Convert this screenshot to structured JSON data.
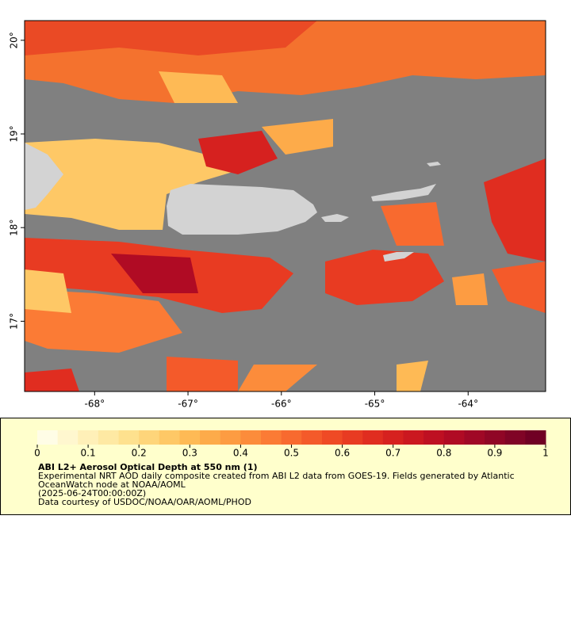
{
  "map": {
    "xlim": [
      -68.75,
      -63.17
    ],
    "ylim": [
      16.25,
      20.21
    ],
    "xticks": [
      {
        "value": -68,
        "label": "-68°"
      },
      {
        "value": -67,
        "label": "-67°"
      },
      {
        "value": -66,
        "label": "-66°"
      },
      {
        "value": -65,
        "label": "-65°"
      },
      {
        "value": -64,
        "label": "-64°"
      }
    ],
    "yticks": [
      {
        "value": 17,
        "label": "17°"
      },
      {
        "value": 18,
        "label": "18°"
      },
      {
        "value": 19,
        "label": "19°"
      },
      {
        "value": 20,
        "label": "20°"
      }
    ]
  },
  "colorbar": {
    "range": [
      0,
      1
    ],
    "ticks": [
      0,
      0.1,
      0.2,
      0.3,
      0.4,
      0.5,
      0.6,
      0.7,
      0.8,
      0.9,
      1
    ],
    "colors": [
      "#fffde6",
      "#fff7cf",
      "#fff0b8",
      "#fee9a3",
      "#fee18e",
      "#fed57a",
      "#fec866",
      "#feba55",
      "#fdab4a",
      "#fd9c42",
      "#fc8c3b",
      "#fb7b35",
      "#f86a2f",
      "#f45a2a",
      "#ef4a25",
      "#e83b22",
      "#e02d20",
      "#d6211f",
      "#cb1820",
      "#be1022",
      "#b00b24",
      "#a00826",
      "#900626",
      "#800426",
      "#700024"
    ]
  },
  "legend": {
    "title": "ABI L2+ Aerosol Optical Depth at 550 nm (1)",
    "lines": [
      "Experimental NRT AOD daily composite created from ABI L2 data from GOES-19. Fields generated by Atlantic",
      "OceanWatch node at NOAA/AOML",
      "(2025-06-24T00:00:00Z)",
      "Data courtesy of USDOC/NOAA/OAR/AOML/PHOD"
    ]
  }
}
